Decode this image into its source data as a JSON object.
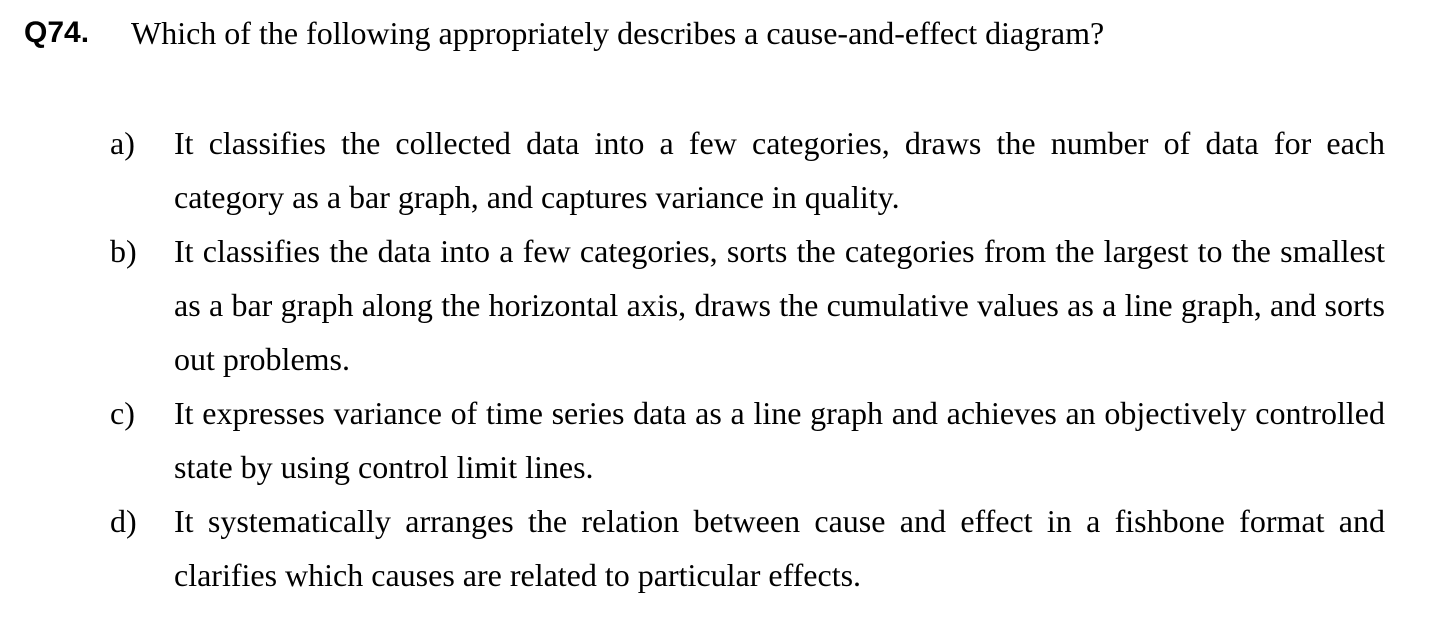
{
  "question": {
    "number": "Q74.",
    "text": "Which of the following appropriately describes a cause-and-effect diagram?"
  },
  "options": [
    {
      "label": "a)",
      "text": "It classifies the collected data into a few categories, draws the number of data for each category as a bar graph, and captures variance in quality."
    },
    {
      "label": "b)",
      "text": "It classifies the data into a few categories, sorts the categories from the largest to the smallest as a bar graph along the horizontal axis, draws the cumulative values as a line graph, and sorts out problems."
    },
    {
      "label": "c)",
      "text": "It expresses variance of time series data as a line graph and achieves an objectively controlled state by using control limit lines."
    },
    {
      "label": "d)",
      "text": "It systematically arranges the relation between cause and effect in a fishbone format and clarifies which causes are related to particular effects."
    }
  ]
}
